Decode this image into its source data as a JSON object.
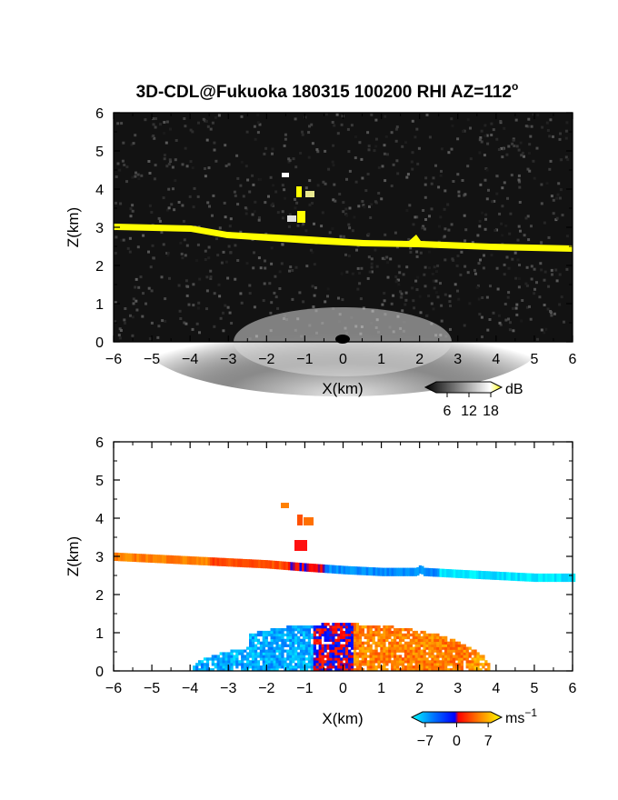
{
  "chart_data": [
    {
      "type": "heatmap",
      "title": "3D-CDL@Fukuoka 180315 100200 RHI AZ=112",
      "title_superscript": "o",
      "xlabel": "X(km)",
      "ylabel": "Z(km)",
      "xlim": [
        -6,
        6
      ],
      "ylim": [
        0,
        6
      ],
      "xticks": [
        "-6",
        "-5",
        "-4",
        "-3",
        "-2",
        "-1",
        "0",
        "1",
        "2",
        "3",
        "4",
        "5",
        "6"
      ],
      "yticks": [
        "0",
        "1",
        "2",
        "3",
        "4",
        "5",
        "6"
      ],
      "colorbar": {
        "label": "dB",
        "ticks": [
          "6",
          "12",
          "18"
        ],
        "tick_values": [
          6,
          12,
          18
        ],
        "range": [
          0,
          21
        ],
        "colors": [
          "#000000",
          "#ffffff",
          "#ffff00"
        ]
      },
      "features": {
        "cloud_base_km": {
          "x": [
            -6,
            -4,
            -2,
            -1,
            0,
            1,
            1.9,
            2,
            2.1,
            3,
            4,
            5,
            6
          ],
          "z": [
            3.0,
            2.9,
            2.8,
            2.72,
            2.65,
            2.6,
            2.6,
            2.68,
            2.6,
            2.55,
            2.5,
            2.45,
            2.45
          ]
        },
        "cloud_fragments_km": [
          {
            "x": -1.55,
            "z": 4.3
          },
          {
            "x": -1.0,
            "z": 3.95
          },
          {
            "x": -1.1,
            "z": 3.3
          }
        ],
        "boundary_layer_top_km": 1.2,
        "colors": {
          "cloud": "#ffff00",
          "background": "#101010",
          "boundary_layer": "#d8d8d8"
        }
      }
    },
    {
      "type": "heatmap",
      "xlabel": "X(km)",
      "ylabel": "Z(km)",
      "xlim": [
        -6,
        6
      ],
      "ylim": [
        0,
        6
      ],
      "xticks": [
        "-6",
        "-5",
        "-4",
        "-3",
        "-2",
        "-1",
        "0",
        "1",
        "2",
        "3",
        "4",
        "5",
        "6"
      ],
      "yticks": [
        "0",
        "1",
        "2",
        "3",
        "4",
        "5",
        "6"
      ],
      "colorbar": {
        "label": "ms",
        "label_superscript": "−1",
        "ticks": [
          "−7",
          "0",
          "7"
        ],
        "tick_values": [
          -7,
          0,
          7
        ],
        "range": [
          -10,
          10
        ],
        "colors": [
          "#00ffff",
          "#0066ff",
          "#0000ff",
          "#ff0000",
          "#ff7f00",
          "#ffff00"
        ]
      },
      "features": {
        "cloud_layer_velocity_ms": [
          {
            "x_range": [
              -6,
              -3.5
            ],
            "velocity": 5
          },
          {
            "x_range": [
              -3.5,
              -1.5
            ],
            "velocity": 3
          },
          {
            "x_range": [
              -1.5,
              -0.5
            ],
            "velocity": 0.5
          },
          {
            "x_range": [
              -0.5,
              2.5
            ],
            "velocity": -6
          },
          {
            "x_range": [
              2.5,
              6
            ],
            "velocity": -9
          }
        ],
        "boundary_layer_velocity_ms": [
          {
            "x_range": [
              -4,
              -0.8
            ],
            "velocity": -7
          },
          {
            "x_range": [
              -0.8,
              0.2
            ],
            "velocity": 0
          },
          {
            "x_range": [
              0.2,
              3.3
            ],
            "velocity": 5
          },
          {
            "x_range": [
              3.3,
              4
            ],
            "velocity": 6
          }
        ]
      }
    }
  ]
}
